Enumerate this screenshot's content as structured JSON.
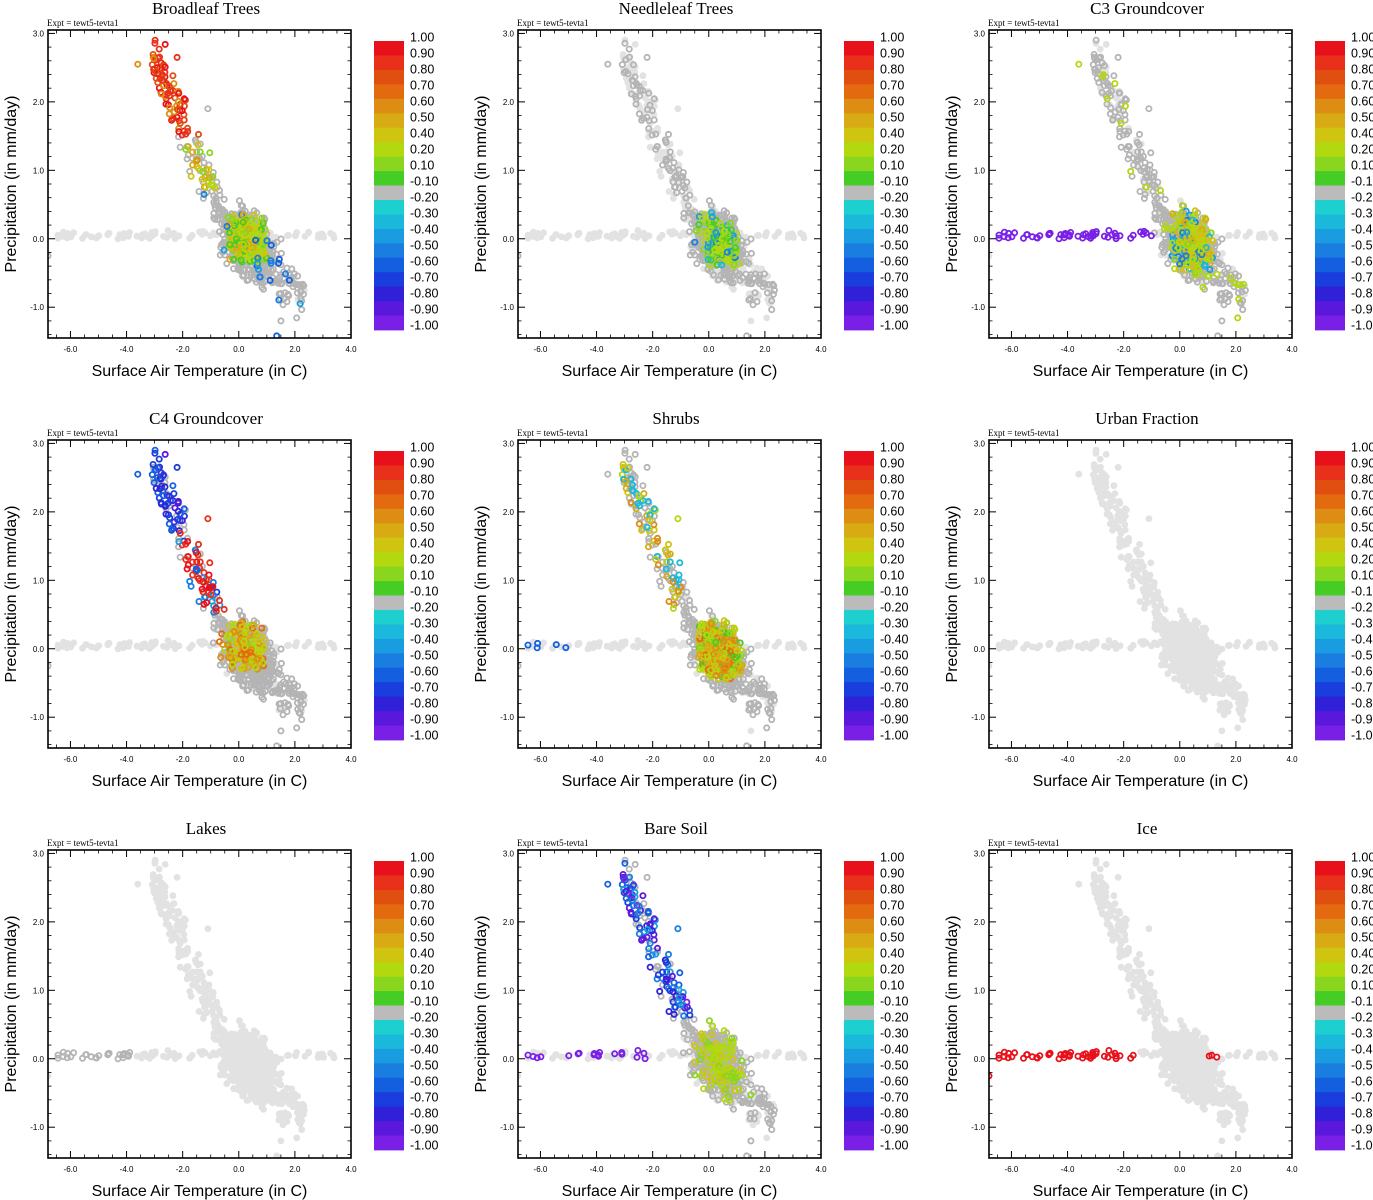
{
  "figure": {
    "expt_label": "Expt = tewt5-tevta1",
    "xlabel": "Surface Air Temperature (in C)",
    "ylabel": "Precipitation (in mm/day)"
  },
  "chart_data": {
    "type": "scatter",
    "xlim": [
      -6.8,
      4.0
    ],
    "ylim": [
      -1.45,
      3.05
    ],
    "x_ticks": [
      "-6.0",
      "-4.0",
      "-2.0",
      "0.0",
      "2.0",
      "4.0"
    ],
    "x_tick_values": [
      -6,
      -4,
      -2,
      0,
      2,
      4
    ],
    "y_ticks": [
      "-1.0",
      "0.0",
      "1.0",
      "2.0",
      "3.0"
    ],
    "y_tick_values": [
      -1,
      0,
      1,
      2,
      3
    ],
    "colorbar": {
      "labels": [
        "1.00",
        "0.90",
        "0.80",
        "0.70",
        "0.60",
        "0.50",
        "0.40",
        "0.20",
        "0.10",
        "-0.10",
        "-0.20",
        "-0.30",
        "-0.40",
        "-0.50",
        "-0.60",
        "-0.70",
        "-0.80",
        "-0.90",
        "-1.00"
      ],
      "colors": [
        "#e8101a",
        "#e8301a",
        "#e04e10",
        "#e46a10",
        "#dd8c14",
        "#d8aa14",
        "#cfc40f",
        "#b2d80f",
        "#8ad61e",
        "#45cd25",
        "#bbbbbb",
        "#1ecfcf",
        "#1ab9db",
        "#1a9ce0",
        "#1a7de0",
        "#145fe0",
        "#1a3ddd",
        "#3020d8",
        "#5a18dd",
        "#7a20e6"
      ]
    },
    "panels": [
      {
        "title": "Broadleaf Trees",
        "mode": "broadleaf"
      },
      {
        "title": "Needleleaf Trees",
        "mode": "needleleaf"
      },
      {
        "title": "C3 Groundcover",
        "mode": "c3"
      },
      {
        "title": "C4 Groundcover",
        "mode": "c4"
      },
      {
        "title": "Shrubs",
        "mode": "shrubs"
      },
      {
        "title": "Urban Fraction",
        "mode": "none"
      },
      {
        "title": "Lakes",
        "mode": "lakes"
      },
      {
        "title": "Bare Soil",
        "mode": "baresoil"
      },
      {
        "title": "Ice",
        "mode": "ice"
      }
    ],
    "correlation_colors": {
      "missing": "#e2e2e2",
      "insignificant": "#b4b4b4"
    }
  }
}
